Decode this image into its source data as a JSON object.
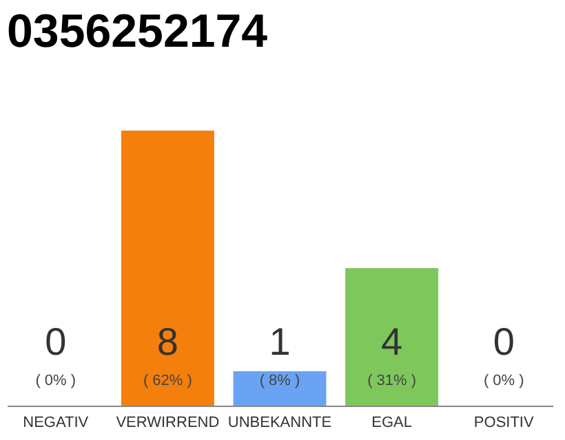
{
  "chart_data": {
    "type": "bar",
    "title": "0356252174",
    "categories": [
      "NEGATIV",
      "VERWIRREND",
      "UNBEKANNTE",
      "EGAL",
      "POSITIV"
    ],
    "values": [
      0,
      8,
      1,
      4,
      0
    ],
    "colors": [
      "#cccccc",
      "#f57f0c",
      "#6aa3f3",
      "#7ec85b",
      "#cccccc"
    ],
    "data_labels": true,
    "annotations": [
      "( 0% )",
      "( 62% )",
      "( 8% )",
      "( 31% )",
      "( 0% )"
    ],
    "grid": false
  }
}
